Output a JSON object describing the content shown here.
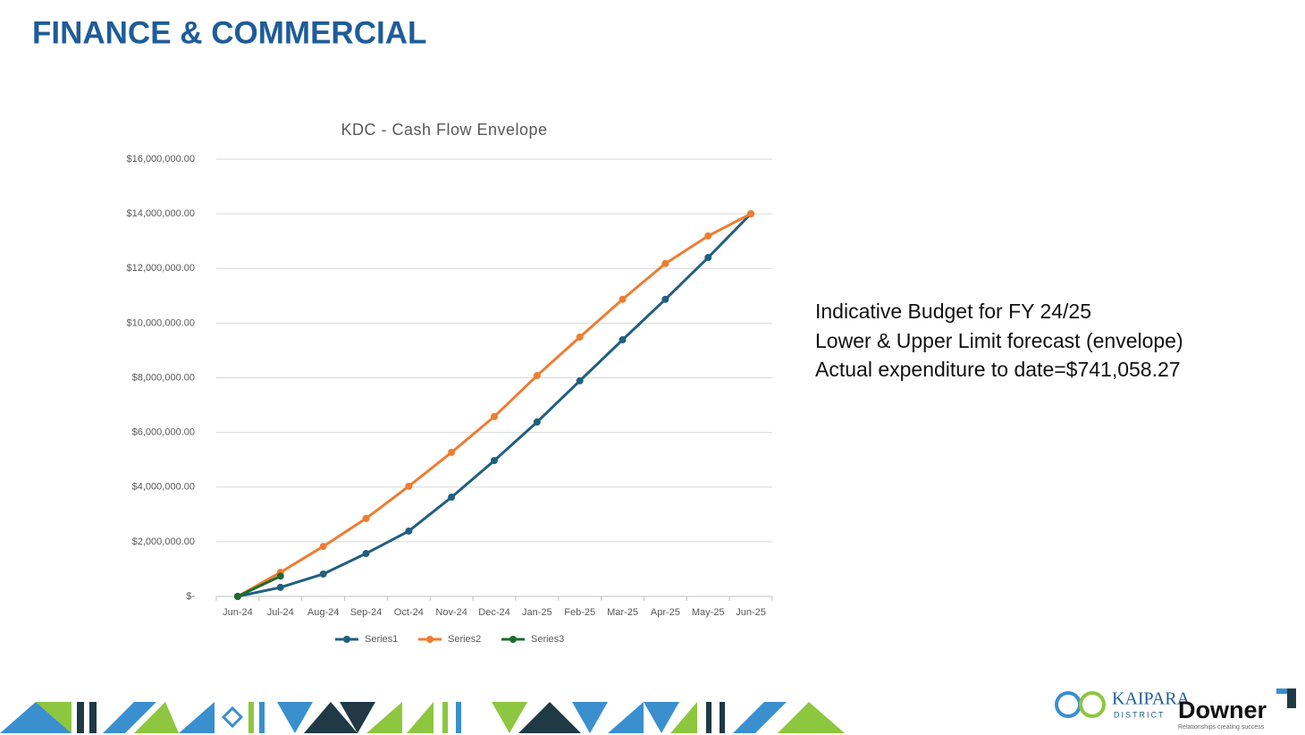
{
  "header": {
    "title": "FINANCE & COMMERCIAL"
  },
  "chart_data": {
    "type": "line",
    "title": "KDC - Cash Flow Envelope",
    "categories": [
      "Jun-24",
      "Jul-24",
      "Aug-24",
      "Sep-24",
      "Oct-24",
      "Nov-24",
      "Dec-24",
      "Jan-25",
      "Feb-25",
      "Mar-25",
      "Apr-25",
      "May-25",
      "Jun-25"
    ],
    "series": [
      {
        "name": "Series1",
        "color": "#215f80",
        "values": [
          0,
          330000,
          820000,
          1570000,
          2390000,
          3630000,
          4970000,
          6380000,
          7890000,
          9390000,
          10870000,
          12400000,
          14000000
        ]
      },
      {
        "name": "Series2",
        "color": "#ed7d31",
        "values": [
          0,
          880000,
          1830000,
          2850000,
          4030000,
          5270000,
          6580000,
          8080000,
          9490000,
          10870000,
          12180000,
          13190000,
          14000000
        ]
      },
      {
        "name": "Series3",
        "color": "#1e6b2e",
        "values": [
          0,
          741058.27,
          null,
          null,
          null,
          null,
          null,
          null,
          null,
          null,
          null,
          null,
          null
        ]
      }
    ],
    "ylim": [
      0,
      16000000
    ],
    "yticks": [
      {
        "value": 0,
        "label": "$-"
      },
      {
        "value": 2000000,
        "label": "$2,000,000.00"
      },
      {
        "value": 4000000,
        "label": "$4,000,000.00"
      },
      {
        "value": 6000000,
        "label": "$6,000,000.00"
      },
      {
        "value": 8000000,
        "label": "$8,000,000.00"
      },
      {
        "value": 10000000,
        "label": "$10,000,000.00"
      },
      {
        "value": 12000000,
        "label": "$12,000,000.00"
      },
      {
        "value": 14000000,
        "label": "$14,000,000.00"
      },
      {
        "value": 16000000,
        "label": "$16,000,000.00"
      }
    ],
    "grid": true,
    "legend": "bottom"
  },
  "notes": [
    "Indicative Budget for FY 24/25",
    "Lower & Upper Limit forecast (envelope)",
    "Actual expenditure to date=$741,058.27"
  ],
  "logos": {
    "kaipara": "KAIPARA",
    "district": "DISTRICT",
    "downer": "Downer",
    "tagline": "Relationships creating success"
  }
}
